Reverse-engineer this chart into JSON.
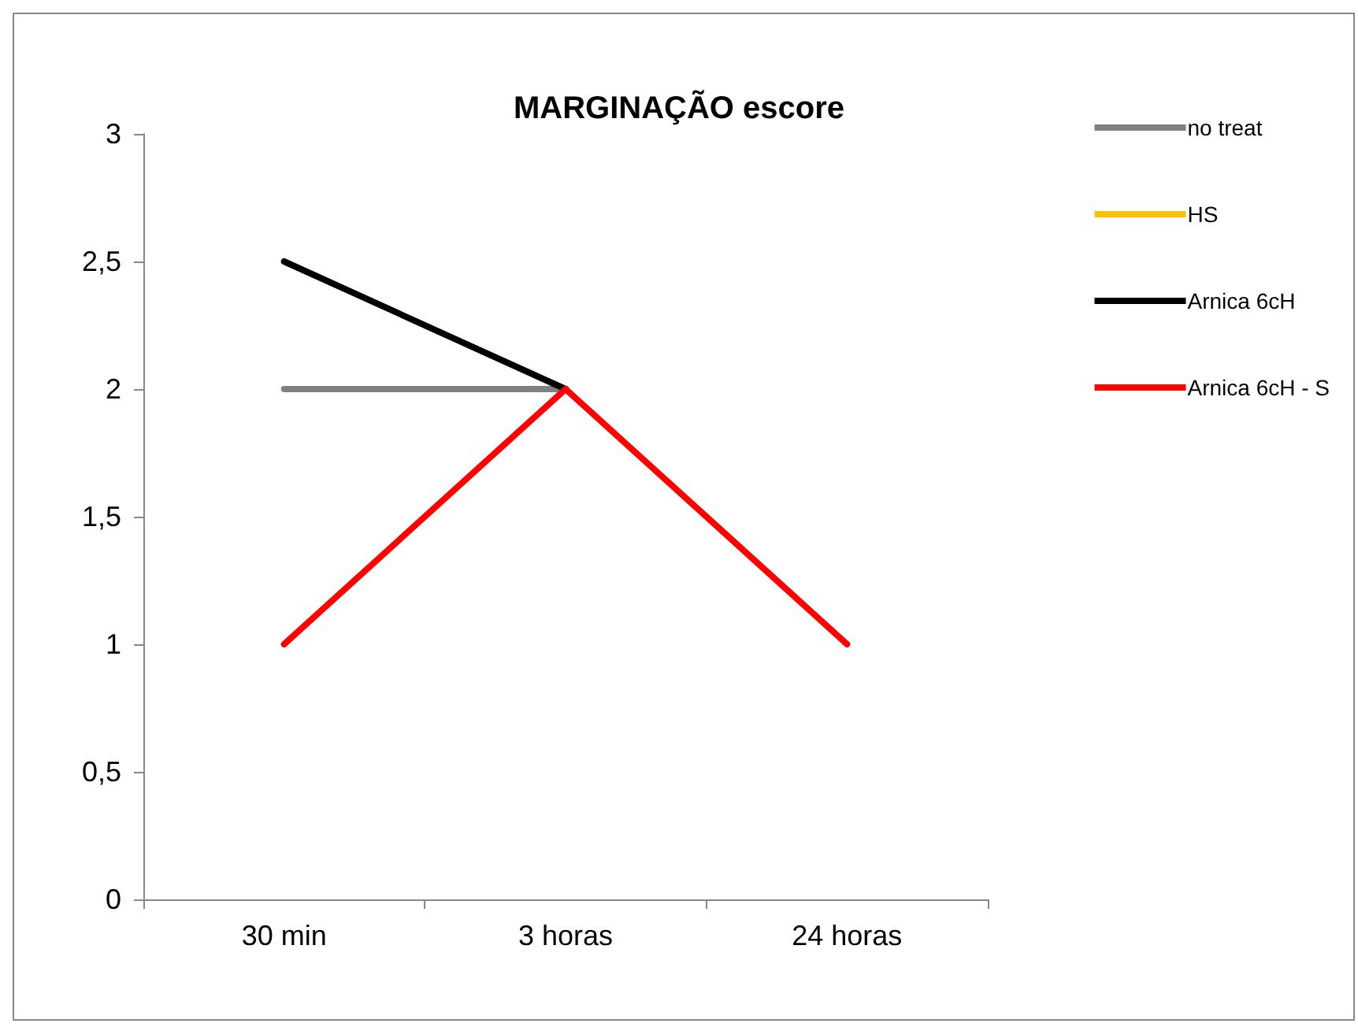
{
  "chart_data": {
    "type": "line",
    "title": "MARGINAÇÃO escore",
    "categories": [
      "30 min",
      "3 horas",
      "24 horas"
    ],
    "series": [
      {
        "name": "no treat",
        "color": "#808080",
        "values": [
          2,
          2,
          null
        ]
      },
      {
        "name": "HS",
        "color": "#ffc000",
        "values": [
          null,
          null,
          null
        ]
      },
      {
        "name": "Arnica 6cH",
        "color": "#000000",
        "values": [
          2.5,
          2,
          null
        ]
      },
      {
        "name": "Arnica 6cH - S",
        "color": "#ff0000",
        "values": [
          1,
          2,
          1
        ]
      }
    ],
    "ylim": [
      0,
      3
    ],
    "yticks": [
      "0",
      {
        "value": 0.5,
        "label": "0,5"
      },
      "1",
      {
        "value": 1.5,
        "label": "1,5"
      },
      "2",
      {
        "value": 2.5,
        "label": "2,5"
      },
      "3"
    ],
    "grid": false,
    "legend": "right",
    "marker": "none",
    "line_style": "solid"
  }
}
